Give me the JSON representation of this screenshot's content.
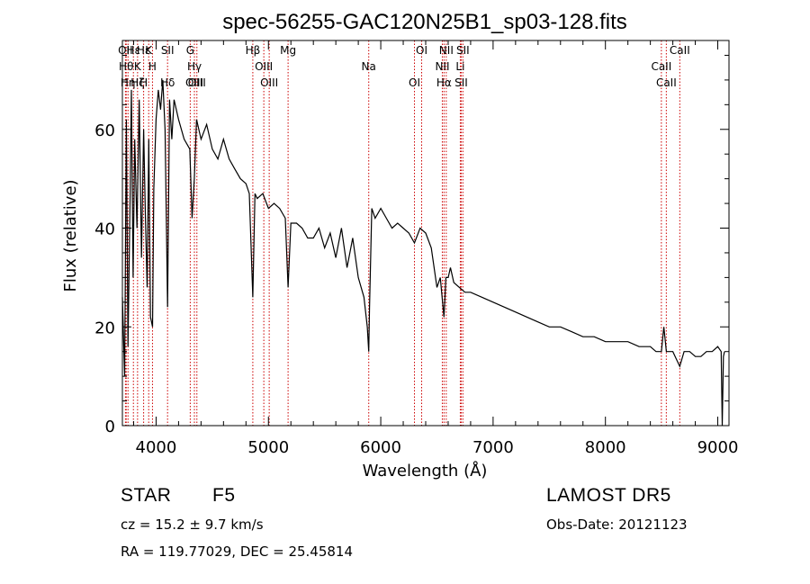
{
  "chart_data": {
    "type": "line",
    "title": "spec-56255-GAC120N25B1_sp03-128.fits",
    "xlabel": "Wavelength (Å)",
    "ylabel": "Flux (relative)",
    "xlim": [
      3700,
      9100
    ],
    "ylim": [
      0,
      78
    ],
    "xticks": [
      4000,
      5000,
      6000,
      7000,
      8000,
      9000
    ],
    "yticks": [
      0,
      20,
      40,
      60
    ],
    "grid": false,
    "series": [
      {
        "x": [
          3700,
          3720,
          3735,
          3750,
          3770,
          3780,
          3795,
          3810,
          3830,
          3850,
          3870,
          3889,
          3905,
          3920,
          3935,
          3950,
          3968,
          3980,
          4000,
          4020,
          4040,
          4060,
          4080,
          4102,
          4120,
          4140,
          4160,
          4200,
          4250,
          4300,
          4320,
          4340,
          4360,
          4380,
          4400,
          4450,
          4500,
          4550,
          4600,
          4650,
          4700,
          4750,
          4800,
          4830,
          4861,
          4880,
          4900,
          4950,
          5000,
          5050,
          5100,
          5150,
          5175,
          5200,
          5250,
          5300,
          5350,
          5400,
          5450,
          5500,
          5550,
          5600,
          5650,
          5700,
          5750,
          5800,
          5850,
          5880,
          5893,
          5900,
          5920,
          5950,
          6000,
          6050,
          6100,
          6150,
          6200,
          6250,
          6300,
          6350,
          6400,
          6450,
          6500,
          6530,
          6563,
          6580,
          6600,
          6620,
          6650,
          6700,
          6750,
          6800,
          6900,
          7000,
          7100,
          7200,
          7300,
          7400,
          7500,
          7600,
          7700,
          7800,
          7900,
          8000,
          8100,
          8200,
          8300,
          8400,
          8450,
          8498,
          8520,
          8542,
          8560,
          8600,
          8662,
          8700,
          8750,
          8800,
          8850,
          8900,
          8950,
          9000,
          9030,
          9040,
          9050,
          9060
        ],
        "y": [
          26,
          10,
          62,
          16,
          48,
          68,
          30,
          58,
          40,
          66,
          34,
          60,
          42,
          28,
          58,
          22,
          20,
          48,
          62,
          68,
          64,
          70,
          60,
          24,
          66,
          58,
          66,
          62,
          58,
          56,
          42,
          50,
          62,
          60,
          58,
          61,
          56,
          54,
          58,
          54,
          52,
          50,
          49,
          47,
          26,
          47,
          46,
          47,
          44,
          45,
          44,
          42,
          28,
          41,
          41,
          40,
          38,
          38,
          40,
          36,
          39,
          34,
          40,
          32,
          38,
          30,
          26,
          20,
          15,
          24,
          44,
          42,
          44,
          42,
          40,
          41,
          40,
          39,
          37,
          40,
          39,
          36,
          28,
          30,
          22,
          30,
          30,
          32,
          29,
          28,
          27,
          27,
          26,
          25,
          24,
          23,
          22,
          21,
          20,
          20,
          19,
          18,
          18,
          17,
          17,
          17,
          16,
          16,
          15,
          15,
          20,
          15,
          15,
          15,
          12,
          15,
          15,
          14,
          14,
          15,
          15,
          16,
          15,
          0,
          14,
          15
        ]
      }
    ],
    "lines": [
      {
        "w": 3727,
        "labels": [
          "OII"
        ]
      },
      {
        "w": 3734,
        "labels": [
          "Hθ"
        ]
      },
      {
        "w": 3750,
        "labels": [
          "Hη"
        ]
      },
      {
        "w": 3798,
        "labels": [
          "Hε"
        ]
      },
      {
        "w": 3835,
        "labels": [
          "K",
          "Hζ"
        ]
      },
      {
        "w": 3889,
        "labels": [
          "H",
          "Hε"
        ]
      },
      {
        "w": 3934,
        "labels": [
          "K"
        ]
      },
      {
        "w": 3968,
        "labels": [
          "H"
        ]
      },
      {
        "w": 4102,
        "labels": [
          "Hδ",
          "SII"
        ]
      },
      {
        "w": 4304,
        "labels": [
          "G"
        ]
      },
      {
        "w": 4341,
        "labels": [
          "Hγ",
          "OIII"
        ]
      },
      {
        "w": 4363,
        "labels": [
          "OIII"
        ]
      },
      {
        "w": 4861,
        "labels": [
          "Hβ"
        ]
      },
      {
        "w": 4959,
        "labels": [
          "OIII"
        ]
      },
      {
        "w": 5007,
        "labels": [
          "OIII"
        ]
      },
      {
        "w": 5175,
        "labels": [
          "Mg"
        ]
      },
      {
        "w": 5893,
        "labels": [
          "Na"
        ]
      },
      {
        "w": 6300,
        "labels": [
          "OI"
        ]
      },
      {
        "w": 6364,
        "labels": [
          "OI"
        ]
      },
      {
        "w": 6548,
        "labels": [
          "NII"
        ]
      },
      {
        "w": 6563,
        "labels": [
          "Hα"
        ]
      },
      {
        "w": 6583,
        "labels": [
          "NII"
        ]
      },
      {
        "w": 6708,
        "labels": [
          "Li"
        ]
      },
      {
        "w": 6716,
        "labels": [
          "SII"
        ]
      },
      {
        "w": 6731,
        "labels": [
          "SII"
        ]
      },
      {
        "w": 8498,
        "labels": [
          "CaII"
        ]
      },
      {
        "w": 8542,
        "labels": [
          "CaII"
        ]
      },
      {
        "w": 8662,
        "labels": [
          "CaII"
        ]
      }
    ],
    "line_color": "#cc0000",
    "spectrum_color": "#000000"
  },
  "info": {
    "class": "STAR",
    "subclass": "F5",
    "release": "LAMOST DR5",
    "redshift": "cz = 15.2 ± 9.7 km/s",
    "obs_date": "Obs-Date: 20121123",
    "coords": "RA = 119.77029, DEC =  25.45814"
  }
}
